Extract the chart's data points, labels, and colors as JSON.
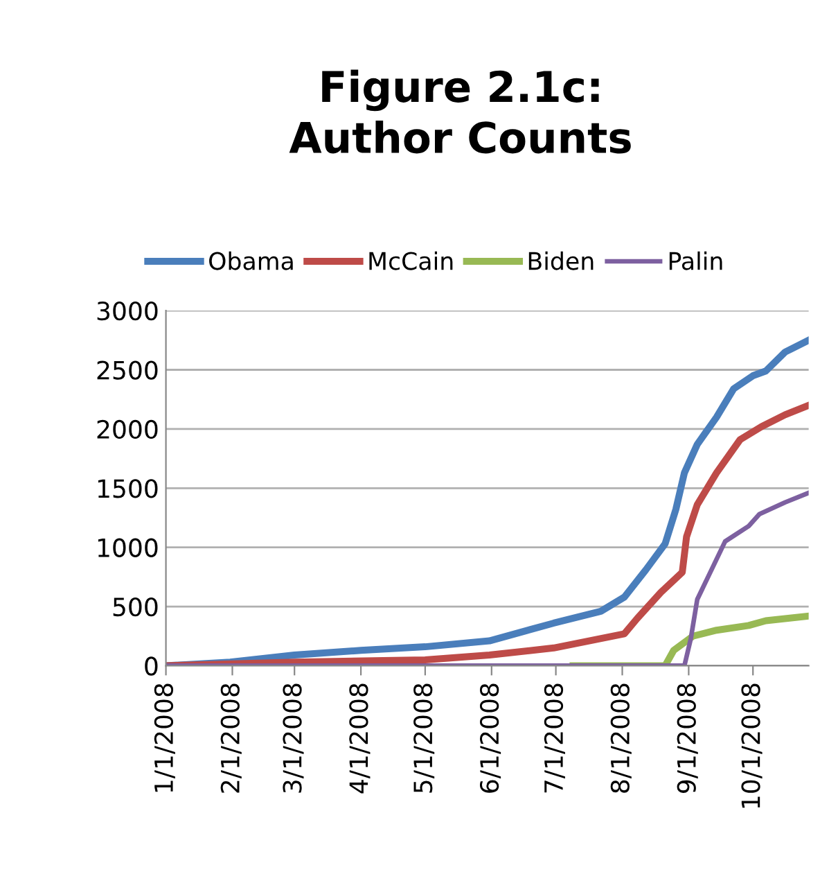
{
  "chart_data": {
    "type": "line",
    "title": "Figure 2.1c:\nAuthor Counts",
    "legend": "top",
    "grid": "y",
    "line_style": "solid",
    "xlim": [
      "2008-01-01",
      "2008-10-27"
    ],
    "xticks": [
      {
        "value": "2008-01-01",
        "label": "1/1/2008"
      },
      {
        "value": "2008-02-01",
        "label": "2/1/2008"
      },
      {
        "value": "2008-03-01",
        "label": "3/1/2008"
      },
      {
        "value": "2008-04-01",
        "label": "4/1/2008"
      },
      {
        "value": "2008-05-01",
        "label": "5/1/2008"
      },
      {
        "value": "2008-06-01",
        "label": "6/1/2008"
      },
      {
        "value": "2008-07-01",
        "label": "7/1/2008"
      },
      {
        "value": "2008-08-01",
        "label": "8/1/2008"
      },
      {
        "value": "2008-09-01",
        "label": "9/1/2008"
      },
      {
        "value": "2008-10-01",
        "label": "10/1/2008"
      }
    ],
    "ylim": [
      0,
      3000
    ],
    "yticks": [
      0,
      500,
      1000,
      1500,
      2000,
      2500,
      3000
    ],
    "series": [
      {
        "name": "Obama",
        "color": "#4a7ebb",
        "x": [
          "2008-01-01",
          "2008-01-31",
          "2008-03-01",
          "2008-04-01",
          "2008-05-01",
          "2008-05-31",
          "2008-06-30",
          "2008-07-22",
          "2008-08-02",
          "2008-08-12",
          "2008-08-21",
          "2008-08-26",
          "2008-08-30",
          "2008-09-05",
          "2008-09-14",
          "2008-09-22",
          "2008-10-01",
          "2008-10-07",
          "2008-10-16",
          "2008-10-27"
        ],
        "values": [
          0,
          30,
          90,
          130,
          160,
          210,
          360,
          460,
          580,
          810,
          1030,
          1320,
          1630,
          1870,
          2100,
          2340,
          2450,
          2490,
          2650,
          2750
        ]
      },
      {
        "name": "McCain",
        "color": "#be4b48",
        "x": [
          "2008-01-01",
          "2008-03-01",
          "2008-05-01",
          "2008-05-31",
          "2008-06-30",
          "2008-08-02",
          "2008-08-08",
          "2008-08-19",
          "2008-08-29",
          "2008-08-31",
          "2008-09-05",
          "2008-09-14",
          "2008-09-25",
          "2008-10-05",
          "2008-10-16",
          "2008-10-27"
        ],
        "values": [
          0,
          30,
          50,
          90,
          150,
          270,
          400,
          620,
          790,
          1090,
          1360,
          1630,
          1910,
          2020,
          2120,
          2200
        ]
      },
      {
        "name": "Biden",
        "color": "#98b954",
        "x": [
          "2008-07-09",
          "2008-08-21",
          "2008-08-25",
          "2008-09-03",
          "2008-09-14",
          "2008-09-29",
          "2008-10-07",
          "2008-10-27"
        ],
        "values": [
          0,
          0,
          130,
          250,
          300,
          340,
          380,
          420
        ]
      },
      {
        "name": "Palin",
        "color": "#7d60a0",
        "x": [
          "2008-01-01",
          "2008-08-30",
          "2008-09-02",
          "2008-09-05",
          "2008-09-18",
          "2008-09-29",
          "2008-10-04",
          "2008-10-16",
          "2008-10-27"
        ],
        "values": [
          0,
          0,
          230,
          560,
          1050,
          1180,
          1280,
          1380,
          1460
        ]
      }
    ]
  }
}
